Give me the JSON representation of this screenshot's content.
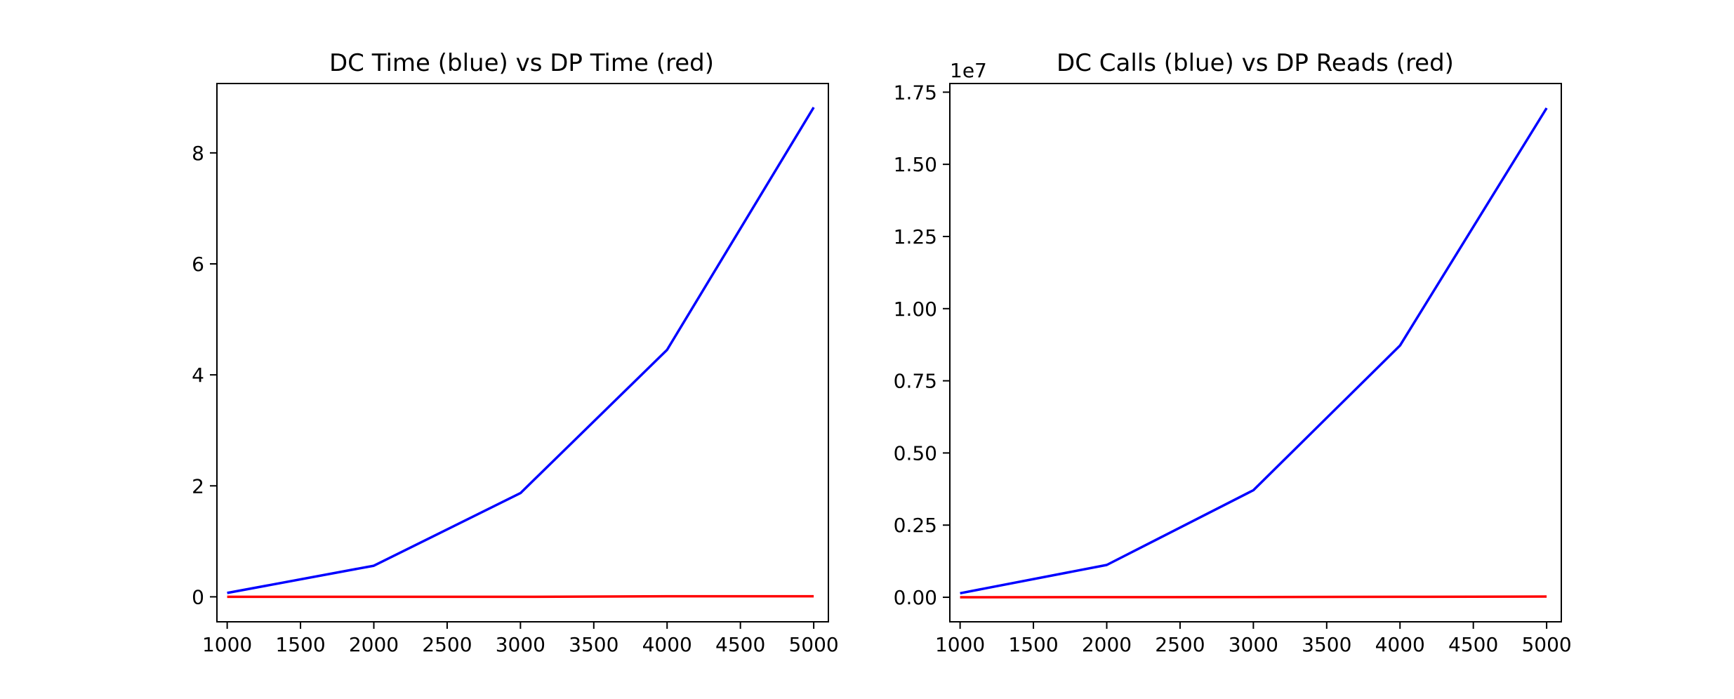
{
  "chart_data": [
    {
      "type": "line",
      "title": "DC Time (blue) vs DP Time (red)",
      "xlabel": "",
      "ylabel": "",
      "x": [
        1000,
        2000,
        3000,
        4000,
        5000
      ],
      "xlim": [
        930,
        5100
      ],
      "ylim": [
        -0.45,
        9.25
      ],
      "xticks": [
        1000,
        1500,
        2000,
        2500,
        3000,
        3500,
        4000,
        4500,
        5000
      ],
      "yticks": [
        0,
        2,
        4,
        6,
        8
      ],
      "ytick_labels": [
        "0",
        "2",
        "4",
        "6",
        "8"
      ],
      "y_offset_label": "",
      "grid": false,
      "series": [
        {
          "color": "#0000ff",
          "values": [
            0.07,
            0.56,
            1.87,
            4.45,
            8.82
          ]
        },
        {
          "color": "#ff0000",
          "values": [
            0.0,
            0.0,
            0.0,
            0.01,
            0.01
          ]
        }
      ]
    },
    {
      "type": "line",
      "title": "DC Calls (blue) vs DP Reads (red)",
      "xlabel": "",
      "ylabel": "",
      "x": [
        1000,
        2000,
        3000,
        4000,
        5000
      ],
      "xlim": [
        930,
        5100
      ],
      "ylim": [
        -0.085,
        1.78
      ],
      "xticks": [
        1000,
        1500,
        2000,
        2500,
        3000,
        3500,
        4000,
        4500,
        5000
      ],
      "yticks": [
        0.0,
        0.25,
        0.5,
        0.75,
        1.0,
        1.25,
        1.5,
        1.75
      ],
      "ytick_labels": [
        "0.00",
        "0.25",
        "0.50",
        "0.75",
        "1.00",
        "1.25",
        "1.50",
        "1.75"
      ],
      "y_offset_label": "1e7",
      "grid": false,
      "series": [
        {
          "color": "#0000ff",
          "values": [
            0.014,
            0.112,
            0.371,
            0.872,
            1.695
          ]
        },
        {
          "color": "#ff0000",
          "values": [
            0.0001,
            0.0004,
            0.0009,
            0.0016,
            0.0025
          ]
        }
      ]
    }
  ]
}
